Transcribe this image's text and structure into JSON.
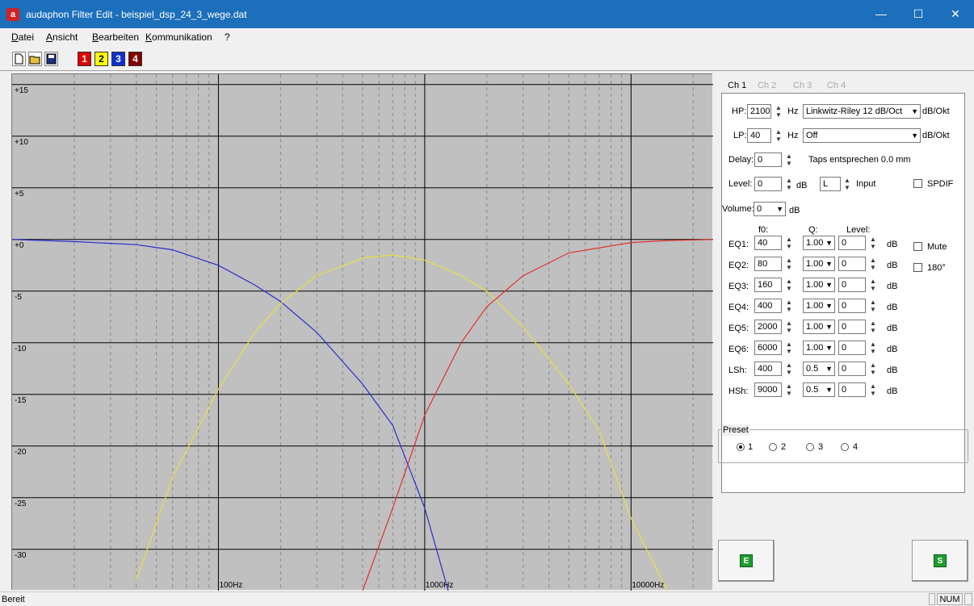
{
  "window": {
    "title": "audaphon Filter Edit - beispiel_dsp_24_3_wege.dat",
    "logo": "a",
    "minimize": "—",
    "maximize": "☐",
    "close": "✕"
  },
  "menu": {
    "file": "D",
    "file_rest": "atei",
    "view": "A",
    "view_rest": "nsicht",
    "edit": "B",
    "edit_rest": "earbeiten",
    "comm": "K",
    "comm_rest": "ommunikation",
    "help": "?"
  },
  "toolbar": {
    "ch1": "1",
    "ch2": "2",
    "ch3": "3",
    "ch4": "4",
    "icons": [
      "new-file-icon",
      "open-folder-icon",
      "save-icon"
    ]
  },
  "colors": {
    "ch1": "#e00000",
    "ch2": "#ffff00",
    "ch3": "#1030d0",
    "ch4": "#800000",
    "curve_blue": "#2b2bd0",
    "curve_yellow": "#e8e040",
    "curve_red": "#e03030"
  },
  "chart_data": {
    "type": "line",
    "x_scale": "log",
    "xlim": [
      10,
      25000
    ],
    "ylim": [
      -34,
      16
    ],
    "y_ticks": [
      {
        "v": 15,
        "label": "+15"
      },
      {
        "v": 10,
        "label": "+10"
      },
      {
        "v": 5,
        "label": "+5"
      },
      {
        "v": 0,
        "label": "+0"
      },
      {
        "v": -5,
        "label": "-5"
      },
      {
        "v": -10,
        "label": "-10"
      },
      {
        "v": -15,
        "label": "-15"
      },
      {
        "v": -20,
        "label": "-20"
      },
      {
        "v": -25,
        "label": "-25"
      },
      {
        "v": -30,
        "label": "-30"
      }
    ],
    "x_ticks": [
      {
        "v": 100,
        "label": "100Hz"
      },
      {
        "v": 1000,
        "label": "1000Hz"
      },
      {
        "v": 10000,
        "label": "10000Hz"
      }
    ],
    "grid": true,
    "series": [
      {
        "color": "blue",
        "x": [
          10,
          20,
          40,
          60,
          100,
          150,
          200,
          300,
          500,
          700,
          1000,
          1300
        ],
        "y": [
          0,
          -0.2,
          -0.5,
          -1,
          -2.5,
          -4.4,
          -6,
          -9,
          -14,
          -18,
          -26,
          -34
        ]
      },
      {
        "color": "yellow",
        "x": [
          40,
          60,
          100,
          150,
          200,
          300,
          500,
          700,
          1000,
          1500,
          2000,
          3000,
          5000,
          7000,
          10000,
          15000
        ],
        "y": [
          -33,
          -23,
          -14.5,
          -9,
          -6.2,
          -3.5,
          -1.8,
          -1.5,
          -2,
          -3.5,
          -5,
          -8.5,
          -14,
          -18.5,
          -27,
          -34
        ]
      },
      {
        "color": "red",
        "x": [
          500,
          700,
          1000,
          1500,
          2000,
          3000,
          5000,
          10000,
          15000,
          25000
        ],
        "y": [
          -34,
          -26,
          -17,
          -10,
          -6.5,
          -3.5,
          -1.3,
          -0.3,
          -0.1,
          0
        ]
      }
    ]
  },
  "side": {
    "tabs": [
      "Ch 1",
      "Ch 2",
      "Ch 3",
      "Ch 4"
    ],
    "hp": {
      "label": "HP:",
      "value": "2100",
      "unit": "Hz",
      "type": "Linkwitz-Riley 12 dB/Oct",
      "slope_unit": "dB/Okt"
    },
    "lp": {
      "label": "LP:",
      "value": "40",
      "unit": "Hz",
      "type": "Off",
      "slope_unit": "dB/Okt"
    },
    "delay": {
      "label": "Delay:",
      "value": "0",
      "note": "Taps entsprechen 0.0 mm"
    },
    "level": {
      "label": "Level:",
      "value": "0",
      "unit": "dB",
      "input_value": "L",
      "input_label": "Input",
      "spdif": "SPDIF"
    },
    "volume": {
      "label": "Volume:",
      "value": "0",
      "unit": "dB"
    },
    "eq_headers": {
      "f0": "f0:",
      "q": "Q:",
      "level": "Level:"
    },
    "eq": [
      {
        "label": "EQ1:",
        "f0": "40",
        "q": "1.00",
        "level": "0",
        "unit": "dB"
      },
      {
        "label": "EQ2:",
        "f0": "80",
        "q": "1.00",
        "level": "0",
        "unit": "dB"
      },
      {
        "label": "EQ3:",
        "f0": "160",
        "q": "1.00",
        "level": "0",
        "unit": "dB"
      },
      {
        "label": "EQ4:",
        "f0": "400",
        "q": "1.00",
        "level": "0",
        "unit": "dB"
      },
      {
        "label": "EQ5:",
        "f0": "2000",
        "q": "1.00",
        "level": "0",
        "unit": "dB"
      },
      {
        "label": "EQ6:",
        "f0": "6000",
        "q": "1.00",
        "level": "0",
        "unit": "dB"
      },
      {
        "label": "LSh:",
        "f0": "400",
        "q": "0.5",
        "level": "0",
        "unit": "dB"
      },
      {
        "label": "HSh:",
        "f0": "9000",
        "q": "0.5",
        "level": "0",
        "unit": "dB"
      }
    ],
    "mute": "Mute",
    "phase": "180°",
    "preset": {
      "legend": "Preset",
      "options": [
        "1",
        "2",
        "3",
        "4"
      ],
      "selected": "1"
    },
    "buttons": {
      "e": "E",
      "s": "S"
    }
  },
  "status": {
    "text": "Bereit",
    "num": "NUM"
  }
}
